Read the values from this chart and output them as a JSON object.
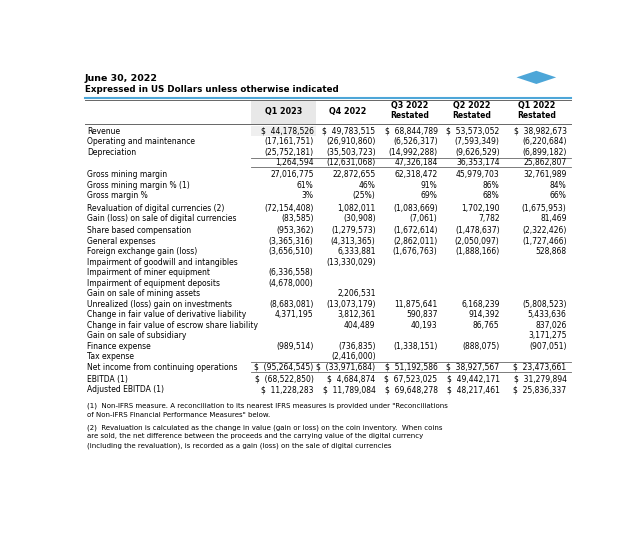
{
  "title_line1": "June 30, 2022",
  "title_line2": "Expressed in US Dollars unless otherwise indicated",
  "columns": [
    "",
    "Q1 2023",
    "Q4 2022",
    "Q3 2022\nRestated",
    "Q2 2022\nRestated",
    "Q1 2022\nRestated"
  ],
  "rows": [
    {
      "label": "Revenue",
      "values": [
        "$  44,178,526",
        "$  49,783,515",
        "$  68,844,789",
        "$  53,573,052",
        "$  38,982,673"
      ],
      "bold": false,
      "shade": true,
      "topline": false,
      "bottomline": false,
      "gap_before": false
    },
    {
      "label": "Operating and maintenance",
      "values": [
        "(17,161,751)",
        "(26,910,860)",
        "(6,526,317)",
        "(7,593,349)",
        "(6,220,684)"
      ],
      "bold": false,
      "shade": false,
      "topline": false,
      "bottomline": false,
      "gap_before": false
    },
    {
      "label": "Depreciation",
      "values": [
        "(25,752,181)",
        "(35,503,723)",
        "(14,992,288)",
        "(9,626,529)",
        "(6,899,182)"
      ],
      "bold": false,
      "shade": false,
      "topline": false,
      "bottomline": false,
      "gap_before": false
    },
    {
      "label": "",
      "values": [
        "1,264,594",
        "(12,631,068)",
        "47,326,184",
        "36,353,174",
        "25,862,807"
      ],
      "bold": false,
      "shade": false,
      "topline": true,
      "bottomline": true,
      "gap_before": false
    },
    {
      "label": "Gross mining margin",
      "values": [
        "27,016,775",
        "22,872,655",
        "62,318,472",
        "45,979,703",
        "32,761,989"
      ],
      "bold": false,
      "shade": false,
      "topline": false,
      "bottomline": false,
      "gap_before": true
    },
    {
      "label": "Gross mining margin % (1)",
      "values": [
        "61%",
        "46%",
        "91%",
        "86%",
        "84%"
      ],
      "bold": false,
      "shade": false,
      "topline": false,
      "bottomline": false,
      "gap_before": false
    },
    {
      "label": "Gross margin %",
      "values": [
        "3%",
        "(25%)",
        "69%",
        "68%",
        "66%"
      ],
      "bold": false,
      "shade": false,
      "topline": false,
      "bottomline": false,
      "gap_before": false
    },
    {
      "label": "Revaluation of digital currencies (2)",
      "values": [
        "(72,154,408)",
        "1,082,011",
        "(1,083,669)",
        "1,702,190",
        "(1,675,953)"
      ],
      "bold": false,
      "shade": false,
      "topline": false,
      "bottomline": false,
      "gap_before": true
    },
    {
      "label": "Gain (loss) on sale of digital currencies",
      "values": [
        "(83,585)",
        "(30,908)",
        "(7,061)",
        "7,782",
        "81,469"
      ],
      "bold": false,
      "shade": false,
      "topline": false,
      "bottomline": false,
      "gap_before": false
    },
    {
      "label": "Share based compensation",
      "values": [
        "(953,362)",
        "(1,279,573)",
        "(1,672,614)",
        "(1,478,637)",
        "(2,322,426)"
      ],
      "bold": false,
      "shade": false,
      "topline": false,
      "bottomline": false,
      "gap_before": true
    },
    {
      "label": "General expenses",
      "values": [
        "(3,365,316)",
        "(4,313,365)",
        "(2,862,011)",
        "(2,050,097)",
        "(1,727,466)"
      ],
      "bold": false,
      "shade": false,
      "topline": false,
      "bottomline": false,
      "gap_before": false
    },
    {
      "label": "Foreign exchange gain (loss)",
      "values": [
        "(3,656,510)",
        "6,333,881",
        "(1,676,763)",
        "(1,888,166)",
        "528,868"
      ],
      "bold": false,
      "shade": false,
      "topline": false,
      "bottomline": false,
      "gap_before": false
    },
    {
      "label": "Impairment of goodwill and intangibles",
      "values": [
        "",
        "(13,330,029)",
        "",
        "",
        ""
      ],
      "bold": false,
      "shade": false,
      "topline": false,
      "bottomline": false,
      "gap_before": false
    },
    {
      "label": "Impairment of miner equipment",
      "values": [
        "(6,336,558)",
        "",
        "",
        "",
        ""
      ],
      "bold": false,
      "shade": false,
      "topline": false,
      "bottomline": false,
      "gap_before": false
    },
    {
      "label": "Impairment of equipment deposits",
      "values": [
        "(4,678,000)",
        "",
        "",
        "",
        ""
      ],
      "bold": false,
      "shade": false,
      "topline": false,
      "bottomline": false,
      "gap_before": false
    },
    {
      "label": "Gain on sale of mining assets",
      "values": [
        "",
        "2,206,531",
        "",
        "",
        ""
      ],
      "bold": false,
      "shade": false,
      "topline": false,
      "bottomline": false,
      "gap_before": false
    },
    {
      "label": "Unrealized (loss) gain on investments",
      "values": [
        "(8,683,081)",
        "(13,073,179)",
        "11,875,641",
        "6,168,239",
        "(5,808,523)"
      ],
      "bold": false,
      "shade": false,
      "topline": false,
      "bottomline": false,
      "gap_before": false
    },
    {
      "label": "Change in fair value of derivative liability",
      "values": [
        "4,371,195",
        "3,812,361",
        "590,837",
        "914,392",
        "5,433,636"
      ],
      "bold": false,
      "shade": false,
      "topline": false,
      "bottomline": false,
      "gap_before": false
    },
    {
      "label": "Change in fair value of escrow share liability",
      "values": [
        "",
        "404,489",
        "40,193",
        "86,765",
        "837,026"
      ],
      "bold": false,
      "shade": false,
      "topline": false,
      "bottomline": false,
      "gap_before": false
    },
    {
      "label": "Gain on sale of subsidiary",
      "values": [
        "",
        "",
        "",
        "",
        "3,171,275"
      ],
      "bold": false,
      "shade": false,
      "topline": false,
      "bottomline": false,
      "gap_before": false
    },
    {
      "label": "Finance expense",
      "values": [
        "(989,514)",
        "(736,835)",
        "(1,338,151)",
        "(888,075)",
        "(907,051)"
      ],
      "bold": false,
      "shade": false,
      "topline": false,
      "bottomline": false,
      "gap_before": false
    },
    {
      "label": "Tax expense",
      "values": [
        "",
        "(2,416,000)",
        "",
        "",
        ""
      ],
      "bold": false,
      "shade": false,
      "topline": false,
      "bottomline": false,
      "gap_before": false
    },
    {
      "label": "Net income from continuing operations",
      "values": [
        "$  (95,264,545)",
        "$  (33,971,684)",
        "$  51,192,586",
        "$  38,927,567",
        "$  23,473,661"
      ],
      "bold": false,
      "shade": false,
      "topline": true,
      "bottomline": true,
      "gap_before": false
    },
    {
      "label": "EBITDA (1)",
      "values": [
        "$  (68,522,850)",
        "$  4,684,874",
        "$  67,523,025",
        "$  49,442,171",
        "$  31,279,894"
      ],
      "bold": false,
      "shade": false,
      "topline": false,
      "bottomline": false,
      "gap_before": true
    },
    {
      "label": "Adjusted EBITDA (1)",
      "values": [
        "$  11,228,283",
        "$  11,789,084",
        "$  69,648,278",
        "$  48,217,461",
        "$  25,836,337"
      ],
      "bold": false,
      "shade": false,
      "topline": false,
      "bottomline": false,
      "gap_before": false
    }
  ],
  "footnote1": "(1)  Non-IFRS measure. A reconciliation to its nearest IFRS measures is provided under \"Reconciliations of Non-IFRS Financial Performance Measures\" below.",
  "footnote2": "(2)  Revaluation is calculated as the change in value (gain or loss) on the coin inventory.  When coins are sold, the net difference between the proceeds and the carrying value of the digital currency (including the revaluation), is recorded as a gain (loss) on the sale of digital currencies",
  "header_bg": "#e8e8e8",
  "shade_bg": "#efefef",
  "accent_color": "#4da6d8",
  "line_color": "#666666",
  "text_color": "#000000"
}
